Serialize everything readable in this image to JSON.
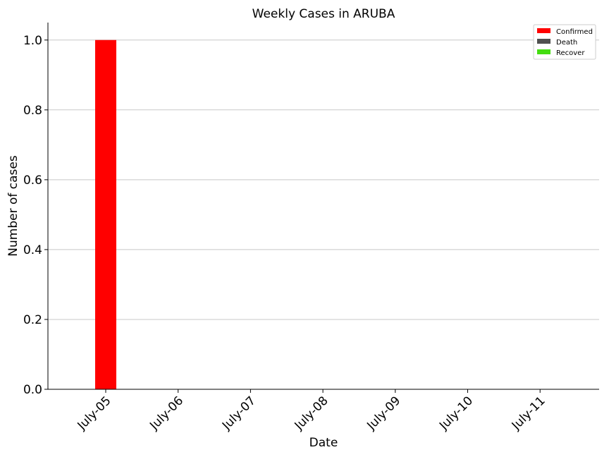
{
  "chart_data": {
    "type": "bar",
    "title": "Weekly Cases in ARUBA",
    "xlabel": "Date",
    "ylabel": "Number of cases",
    "categories": [
      "July-05",
      "July-06",
      "July-07",
      "July-08",
      "July-09",
      "July-10",
      "July-11"
    ],
    "series": [
      {
        "name": "Confirmed",
        "color": "#ff0000",
        "values": [
          1,
          0,
          0,
          0,
          0,
          0,
          0
        ]
      },
      {
        "name": "Death",
        "color": "#505050",
        "values": [
          0,
          0,
          0,
          0,
          0,
          0,
          0
        ]
      },
      {
        "name": "Recover",
        "color": "#44dd11",
        "values": [
          0,
          0,
          0,
          0,
          0,
          0,
          0
        ]
      }
    ],
    "ylim": [
      0,
      1.05
    ],
    "yticks": [
      "0.0",
      "0.2",
      "0.4",
      "0.6",
      "0.8",
      "1.0"
    ],
    "grid": "horizontal",
    "legend_position": "top-right"
  }
}
